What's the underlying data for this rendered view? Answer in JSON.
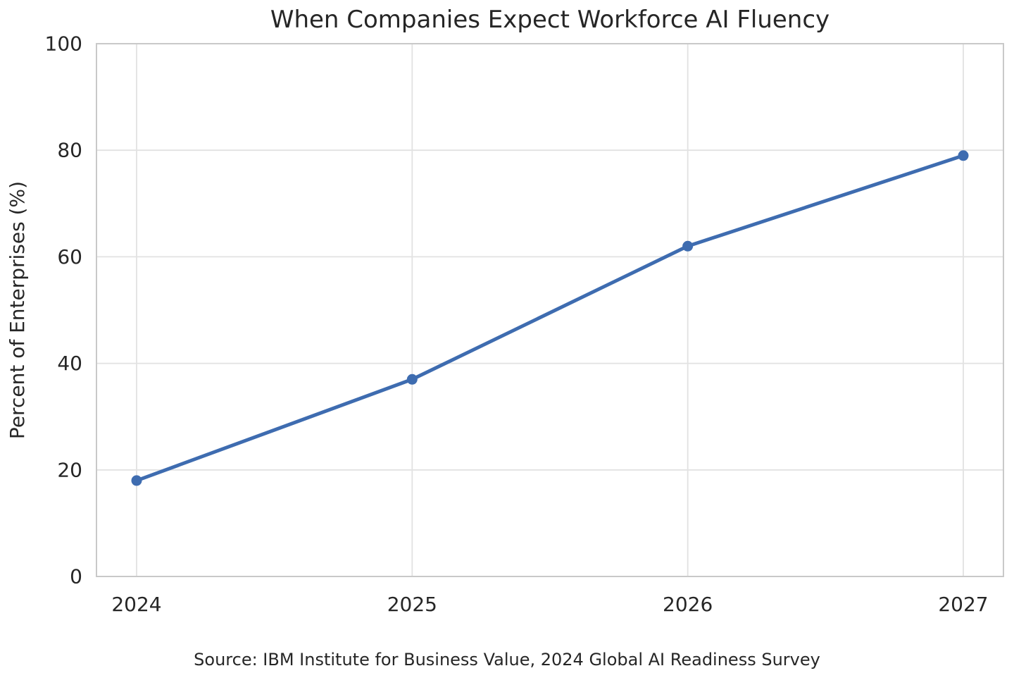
{
  "chart_data": {
    "type": "line",
    "title": "When Companies Expect Workforce AI Fluency",
    "categories": [
      "2024",
      "2025",
      "2026",
      "2027"
    ],
    "values": [
      18,
      37,
      62,
      79
    ],
    "xlabel": "",
    "ylabel": "Percent of Enterprises (%)",
    "ylim": [
      0,
      100
    ],
    "yticks": [
      0,
      20,
      40,
      60,
      80,
      100
    ],
    "grid": true,
    "legend_position": "none",
    "source_note": "Source: IBM Institute for Business Value, 2024 Global AI Readiness Survey",
    "line_color": "#3E6CB0",
    "marker": "circle",
    "grid_color": "#E2E2E2",
    "spine_color": "#C9C9C9",
    "text_color": "#262626",
    "background_color": "#FFFFFF"
  }
}
